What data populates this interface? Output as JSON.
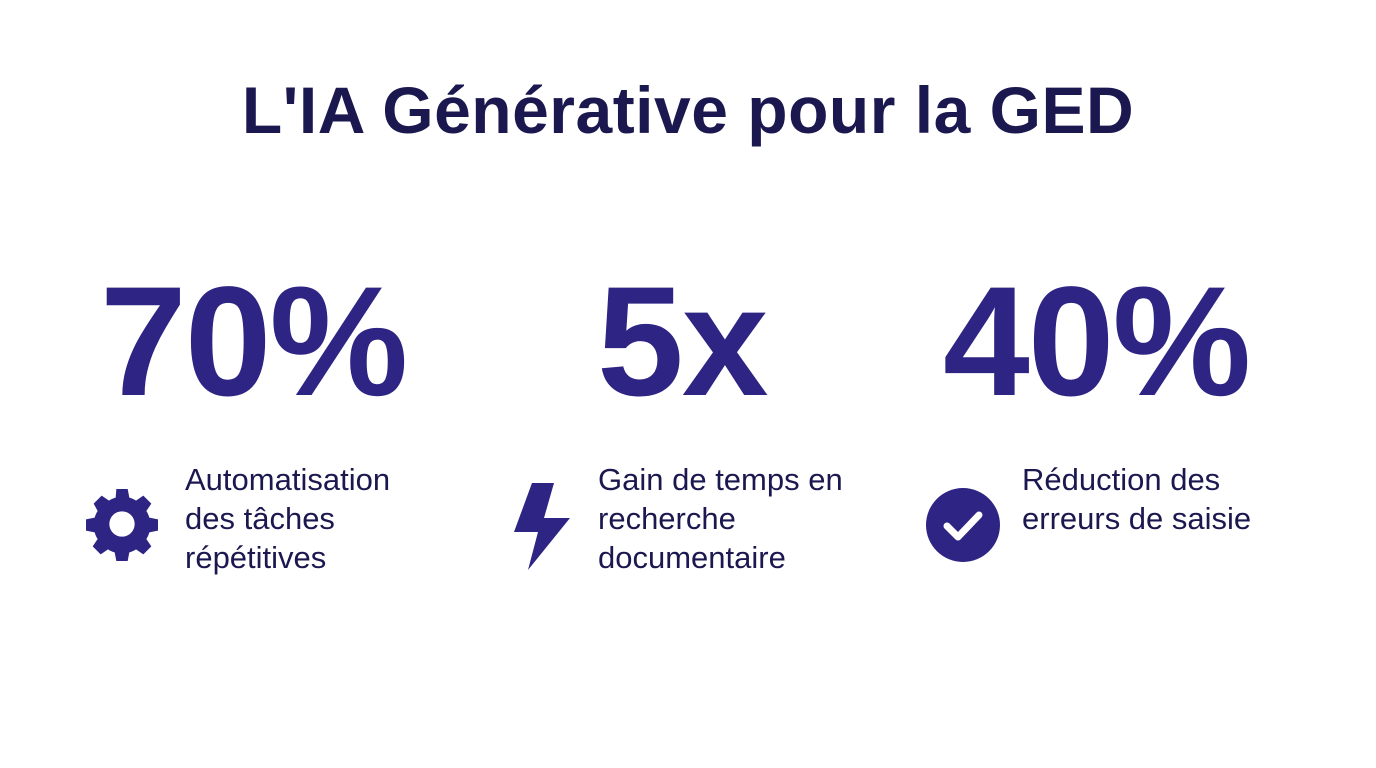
{
  "title": "L'IA Générative pour la GED",
  "colors": {
    "title": "#1b1850",
    "accent": "#2e2484",
    "text": "#1b1850",
    "background": "#ffffff"
  },
  "stats": [
    {
      "value": "70%",
      "icon": "gear-icon",
      "lines": [
        "Automatisation",
        "des tâches",
        "répétitives"
      ]
    },
    {
      "value": "5x",
      "icon": "lightning-bolt-icon",
      "lines": [
        "Gain de temps en",
        "recherche",
        "documentaire"
      ]
    },
    {
      "value": "40%",
      "icon": "check-circle-icon",
      "lines": [
        "Réduction des",
        "erreurs de saisie"
      ]
    }
  ]
}
